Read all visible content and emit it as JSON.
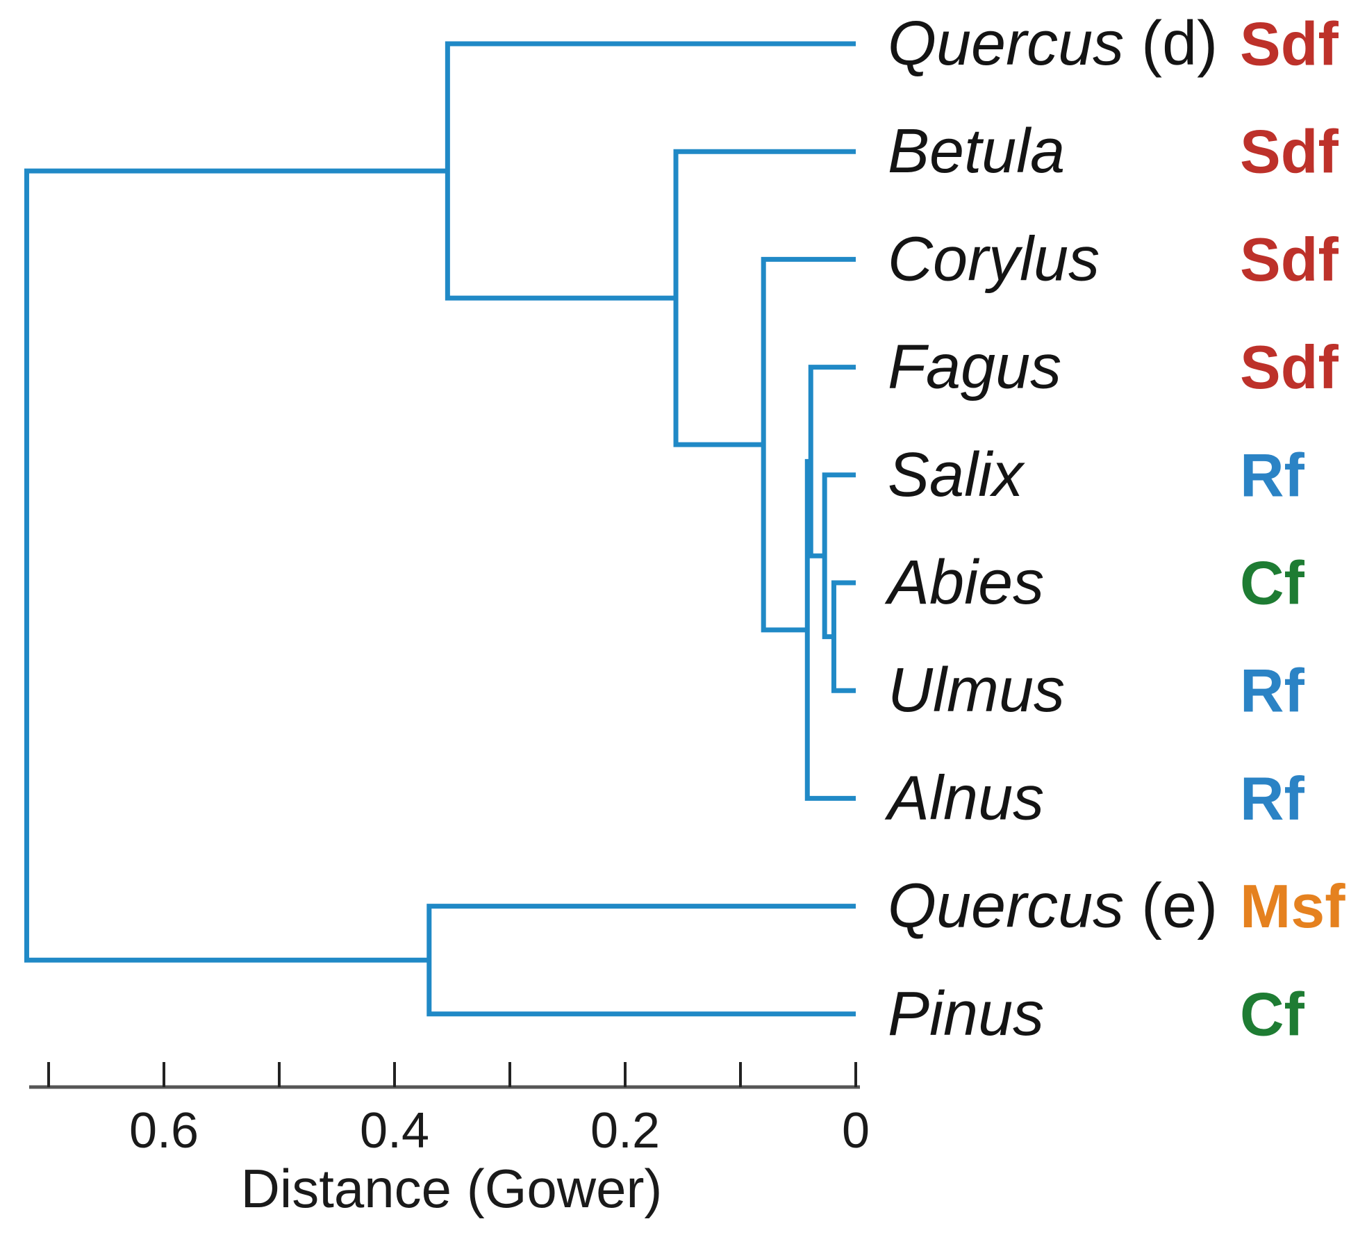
{
  "figure": {
    "background": "#ffffff",
    "link_color": "#2089c6",
    "text_color": "#141414",
    "axis_line_color": "#555555",
    "tick_mark_color": "#222222"
  },
  "groups": {
    "Sdf": "#bd312a",
    "Rf": "#2b83c5",
    "Cf": "#1e7c33",
    "Msf": "#e5811f"
  },
  "chart_data": {
    "type": "dendrogram",
    "orientation": "horizontal-right-aligned",
    "xlabel": "Distance (Gower)",
    "x_axis": {
      "min": 0,
      "max": 0.72,
      "direction": "reversed",
      "tick_values": [
        0.7,
        0.6,
        0.5,
        0.4,
        0.3,
        0.2,
        0.1,
        0
      ],
      "labeled_ticks": [
        {
          "value": 0.6,
          "label": "0.6"
        },
        {
          "value": 0.4,
          "label": "0.4"
        },
        {
          "value": 0.2,
          "label": "0.2"
        },
        {
          "value": 0,
          "label": "0"
        }
      ]
    },
    "leaves": [
      {
        "name": "Quercus",
        "annotation": "(d)",
        "group": "Sdf"
      },
      {
        "name": "Betula",
        "annotation": "",
        "group": "Sdf"
      },
      {
        "name": "Corylus",
        "annotation": "",
        "group": "Sdf"
      },
      {
        "name": "Fagus",
        "annotation": "",
        "group": "Sdf"
      },
      {
        "name": "Salix",
        "annotation": "",
        "group": "Rf"
      },
      {
        "name": "Abies",
        "annotation": "",
        "group": "Cf"
      },
      {
        "name": "Ulmus",
        "annotation": "",
        "group": "Rf"
      },
      {
        "name": "Alnus",
        "annotation": "",
        "group": "Rf"
      },
      {
        "name": "Quercus",
        "annotation": "(e)",
        "group": "Msf"
      },
      {
        "name": "Pinus",
        "annotation": "",
        "group": "Cf"
      }
    ],
    "merges": [
      {
        "id": "M0",
        "children": [
          "L5",
          "L6"
        ],
        "distance": 0.019
      },
      {
        "id": "M1",
        "children": [
          "L4",
          "M0"
        ],
        "distance": 0.027
      },
      {
        "id": "M2",
        "children": [
          "L3",
          "M1"
        ],
        "distance": 0.039
      },
      {
        "id": "M3",
        "children": [
          "M2",
          "L7"
        ],
        "distance": 0.042
      },
      {
        "id": "M4",
        "children": [
          "L2",
          "M3"
        ],
        "distance": 0.08
      },
      {
        "id": "M5",
        "children": [
          "L1",
          "M4"
        ],
        "distance": 0.156
      },
      {
        "id": "M6",
        "children": [
          "L0",
          "M5"
        ],
        "distance": 0.354
      },
      {
        "id": "M7",
        "children": [
          "L8",
          "L9"
        ],
        "distance": 0.37
      },
      {
        "id": "M8",
        "children": [
          "M6",
          "M7"
        ],
        "distance": 0.719
      }
    ]
  }
}
